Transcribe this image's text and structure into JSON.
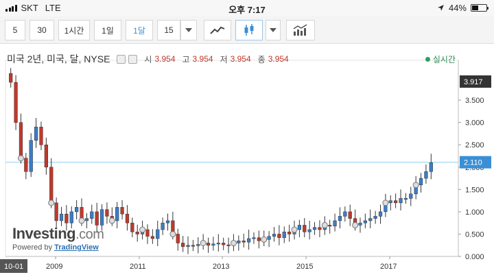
{
  "status": {
    "carrier": "SKT",
    "network": "LTE",
    "time": "오후 7:17",
    "battery": "44%"
  },
  "toolbar": {
    "intervals": [
      {
        "label": "5",
        "active": false
      },
      {
        "label": "30",
        "active": false
      },
      {
        "label": "1시간",
        "active": false
      },
      {
        "label": "1일",
        "active": false
      },
      {
        "label": "1달",
        "active": true
      },
      {
        "label": "15",
        "active": false
      }
    ]
  },
  "legend": {
    "symbol": "미국 2년, 미국, 달, NYSE",
    "open_label": "시",
    "open_value": "3.954",
    "high_label": "고",
    "high_value": "3.954",
    "low_label": "저",
    "low_value": "3.954",
    "close_label": "종",
    "close_value": "3.954",
    "live": "실시간"
  },
  "watermark": {
    "brand": "Investing",
    "brand_suffix": ".com",
    "powered_by": "Powered by",
    "provider": "TradingView"
  },
  "colors": {
    "up": "#3a7dc9",
    "down": "#c0392b",
    "price_line": "#8fd3f0",
    "current_label": "#3a8fd6"
  },
  "chart_data": {
    "type": "candlestick",
    "y_ticks": [
      "3.500",
      "3.000",
      "2.500",
      "2.000",
      "1.500",
      "1.000",
      "0.500",
      "0.000"
    ],
    "x_ticks": [
      "10-01",
      "2009",
      "2011",
      "2013",
      "2015",
      "2017"
    ],
    "ylim": [
      0,
      4.3
    ],
    "current_price": "2.110",
    "last_price_label": "3.917",
    "closes": [
      3.9,
      3.0,
      2.2,
      1.9,
      2.6,
      2.9,
      2.5,
      2.0,
      1.2,
      0.8,
      0.95,
      0.75,
      1.0,
      1.1,
      0.8,
      0.85,
      1.0,
      0.7,
      1.05,
      0.9,
      0.8,
      1.1,
      0.95,
      0.75,
      0.55,
      0.5,
      0.6,
      0.45,
      0.4,
      0.6,
      0.75,
      0.8,
      0.5,
      0.3,
      0.22,
      0.25,
      0.24,
      0.27,
      0.3,
      0.25,
      0.28,
      0.3,
      0.26,
      0.24,
      0.3,
      0.35,
      0.32,
      0.4,
      0.42,
      0.35,
      0.38,
      0.45,
      0.5,
      0.42,
      0.55,
      0.5,
      0.6,
      0.7,
      0.55,
      0.6,
      0.65,
      0.6,
      0.7,
      0.68,
      0.8,
      0.9,
      1.0,
      0.85,
      0.7,
      0.75,
      0.8,
      0.85,
      0.9,
      1.0,
      1.2,
      1.25,
      1.2,
      1.3,
      1.3,
      1.4,
      1.6,
      1.75,
      1.9,
      2.1
    ],
    "x_start": "2007-10-01",
    "x_end": "2018-05-01"
  }
}
